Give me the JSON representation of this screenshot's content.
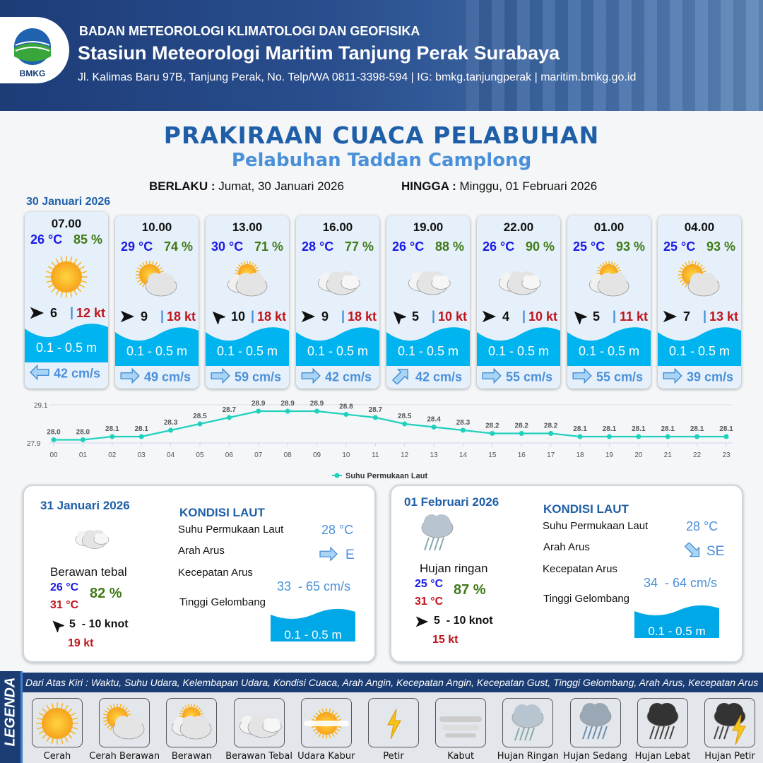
{
  "header": {
    "org": "BADAN METEOROLOGI KLIMATOLOGI DAN GEOFISIKA",
    "station": "Stasiun Meteorologi Maritim Tanjung Perak Surabaya",
    "contact": "Jl. Kalimas Baru 97B, Tanjung Perak, No. Telp/WA 0811-3398-594 | IG: bmkg.tanjungperak | maritim.bmkg.go.id",
    "logo_text": "BMKG"
  },
  "title": "PRAKIRAAN CUACA PELABUHAN",
  "subtitle": "Pelabuhan Taddan Camplong",
  "validity": {
    "from_label": "BERLAKU :",
    "from": "Jumat, 30 Januari 2026",
    "to_label": "HINGGA :",
    "to": "Minggu, 01 Februari 2026"
  },
  "day1_date": "30 Januari 2026",
  "colors": {
    "temp": "#1a1ae6",
    "humidity": "#3f7a16",
    "gust": "#c0141c",
    "wave": "#00b4f0",
    "current": "#4a90d9",
    "brand": "#1f5fa8"
  },
  "forecast": [
    {
      "time": "07.00",
      "temp": "26 °C",
      "hum": "85 %",
      "icon": "cerah",
      "wind_dir": "E",
      "wind": "6",
      "gust": "12 kt",
      "wave": "0.1 - 0.5 m",
      "cur_dir": "W",
      "cur": "42 cm/s"
    },
    {
      "time": "10.00",
      "temp": "29 °C",
      "hum": "74 %",
      "icon": "cerah-berawan",
      "wind_dir": "E",
      "wind": "9",
      "gust": "18 kt",
      "wave": "0.1 - 0.5 m",
      "cur_dir": "E",
      "cur": "49 cm/s"
    },
    {
      "time": "13.00",
      "temp": "30 °C",
      "hum": "71 %",
      "icon": "berawan",
      "wind_dir": "NW",
      "wind": "10",
      "gust": "18 kt",
      "wave": "0.1 - 0.5 m",
      "cur_dir": "E",
      "cur": "59 cm/s"
    },
    {
      "time": "16.00",
      "temp": "28 °C",
      "hum": "77 %",
      "icon": "berawan-tebal",
      "wind_dir": "E",
      "wind": "9",
      "gust": "18 kt",
      "wave": "0.1 - 0.5 m",
      "cur_dir": "E",
      "cur": "42 cm/s"
    },
    {
      "time": "19.00",
      "temp": "26 °C",
      "hum": "88 %",
      "icon": "berawan-tebal",
      "wind_dir": "NW",
      "wind": "5",
      "gust": "10 kt",
      "wave": "0.1 - 0.5 m",
      "cur_dir": "NE",
      "cur": "42 cm/s"
    },
    {
      "time": "22.00",
      "temp": "26 °C",
      "hum": "90 %",
      "icon": "berawan-tebal",
      "wind_dir": "E",
      "wind": "4",
      "gust": "10 kt",
      "wave": "0.1 - 0.5 m",
      "cur_dir": "E",
      "cur": "55 cm/s"
    },
    {
      "time": "01.00",
      "temp": "25 °C",
      "hum": "93 %",
      "icon": "berawan",
      "wind_dir": "NW",
      "wind": "5",
      "gust": "11 kt",
      "wave": "0.1 - 0.5 m",
      "cur_dir": "E",
      "cur": "55 cm/s"
    },
    {
      "time": "04.00",
      "temp": "25 °C",
      "hum": "93 %",
      "icon": "cerah-berawan",
      "wind_dir": "E",
      "wind": "7",
      "gust": "13 kt",
      "wave": "0.1 - 0.5 m",
      "cur_dir": "E",
      "cur": "39 cm/s"
    }
  ],
  "chart_data": {
    "type": "line",
    "x": [
      "00",
      "01",
      "02",
      "03",
      "04",
      "05",
      "06",
      "07",
      "08",
      "09",
      "10",
      "11",
      "12",
      "13",
      "14",
      "15",
      "16",
      "17",
      "18",
      "19",
      "20",
      "21",
      "22",
      "23"
    ],
    "series": [
      {
        "name": "Suhu Permukaan Laut",
        "values": [
          28.0,
          28.0,
          28.1,
          28.1,
          28.3,
          28.5,
          28.7,
          28.9,
          28.9,
          28.9,
          28.8,
          28.7,
          28.5,
          28.4,
          28.3,
          28.2,
          28.2,
          28.2,
          28.1,
          28.1,
          28.1,
          28.1,
          28.1,
          28.1
        ],
        "color": "#1fd1bd"
      }
    ],
    "yticks": [
      "27.9",
      "29.1"
    ],
    "ylim": [
      27.9,
      29.1
    ],
    "legend": "bottom",
    "grid": true
  },
  "days": [
    {
      "date": "31 Januari 2026",
      "icon": "berawan-tebal",
      "cond": "Berawan tebal",
      "tmin": "26 °C",
      "tmax": "31 °C",
      "hum": "82 %",
      "wind_dir": "NW",
      "wind": "5  - 10 knot",
      "gust": "19 kt",
      "kondisi": "KONDISI LAUT",
      "sst_label": "Suhu Permukaan Laut",
      "sst": "28 °C",
      "arus_label": "Arah Arus",
      "arus_dir": "E",
      "kec_label": "Kecepatan Arus",
      "kec": "33  - 65 cm/s",
      "gel_label": "Tinggi Gelombang",
      "gel": "0.1 - 0.5 m"
    },
    {
      "date": "01 Februari 2026",
      "icon": "hujan-ringan",
      "cond": "Hujan ringan",
      "tmin": "25 °C",
      "tmax": "31 °C",
      "hum": "87 %",
      "wind_dir": "E",
      "wind": "5  - 10 knot",
      "gust": "15 kt",
      "kondisi": "KONDISI LAUT",
      "sst_label": "Suhu Permukaan Laut",
      "sst": "28 °C",
      "arus_label": "Arah Arus",
      "arus_dir": "SE",
      "kec_label": "Kecepatan Arus",
      "kec": "34  - 64 cm/s",
      "gel_label": "Tinggi Gelombang",
      "gel": "0.1 - 0.5 m"
    }
  ],
  "legend": {
    "title": "LEGENDA",
    "caption": "Dari Atas Kiri : Waktu, Suhu Udara, Kelembapan Udara, Kondisi Cuaca, Arah Angin, Kecepatan Angin, Kecepatan Gust, Tinggi Gelombang, Arah Arus, Kecepatan Arus",
    "items": [
      {
        "icon": "cerah",
        "label": "Cerah"
      },
      {
        "icon": "cerah-berawan",
        "label": "Cerah Berawan"
      },
      {
        "icon": "berawan",
        "label": "Berawan"
      },
      {
        "icon": "berawan-tebal",
        "label": "Berawan Tebal"
      },
      {
        "icon": "udara-kabur",
        "label": "Udara Kabur"
      },
      {
        "icon": "petir",
        "label": "Petir"
      },
      {
        "icon": "kabut",
        "label": "Kabut"
      },
      {
        "icon": "hujan-ringan",
        "label": "Hujan Ringan"
      },
      {
        "icon": "hujan-sedang",
        "label": "Hujan Sedang"
      },
      {
        "icon": "hujan-lebat",
        "label": "Hujan Lebat"
      },
      {
        "icon": "hujan-petir",
        "label": "Hujan Petir"
      }
    ]
  }
}
